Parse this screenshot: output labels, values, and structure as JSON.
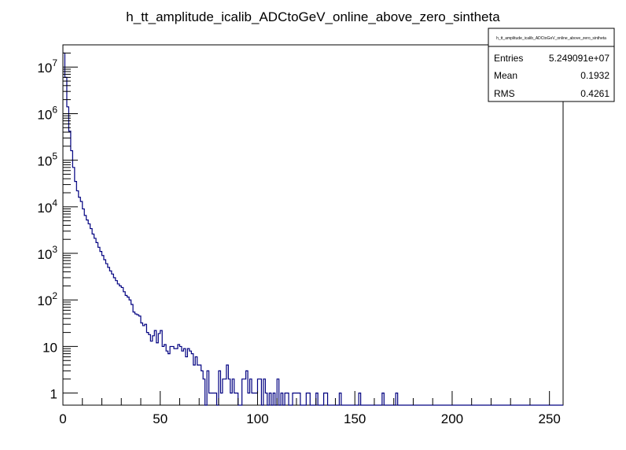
{
  "chart_data": {
    "type": "histogram",
    "title": "h_tt_amplitude_icalib_ADCtoGeV_online_above_zero_sintheta",
    "xlabel": "",
    "ylabel": "",
    "xlim": [
      0,
      257
    ],
    "ylim": [
      0.55,
      30000000
    ],
    "y_scale": "log",
    "grid": false,
    "line_color": "#000080",
    "x_ticks": [
      0,
      50,
      100,
      150,
      200,
      250
    ],
    "x_tick_labels": [
      "0",
      "50",
      "100",
      "150",
      "200",
      "250"
    ],
    "y_ticks": [
      {
        "value": 1,
        "base": "1",
        "exp": ""
      },
      {
        "value": 10,
        "base": "10",
        "exp": ""
      },
      {
        "value": 100,
        "base": "10",
        "exp": "2"
      },
      {
        "value": 1000,
        "base": "10",
        "exp": "3"
      },
      {
        "value": 10000,
        "base": "10",
        "exp": "4"
      },
      {
        "value": 100000,
        "base": "10",
        "exp": "5"
      },
      {
        "value": 1000000,
        "base": "10",
        "exp": "6"
      },
      {
        "value": 10000000,
        "base": "10",
        "exp": "7"
      }
    ],
    "bin_width": 1,
    "bin_start": 0,
    "counts": [
      20000000,
      6000000,
      1400000,
      420000,
      160000,
      70000,
      35000,
      22000,
      16000,
      13000,
      9000,
      6500,
      5200,
      4300,
      3400,
      2600,
      2100,
      1700,
      1350,
      1100,
      900,
      730,
      600,
      500,
      420,
      360,
      300,
      260,
      220,
      200,
      185,
      150,
      125,
      115,
      100,
      80,
      55,
      50,
      48,
      45,
      32,
      28,
      30,
      20,
      18,
      13,
      17,
      22,
      12,
      19,
      22,
      10,
      11,
      8,
      7,
      10,
      10,
      9,
      9,
      11,
      10,
      8,
      9,
      6,
      9,
      8,
      7,
      4,
      6,
      4,
      4,
      3,
      2,
      0,
      3,
      1,
      1,
      1,
      1,
      0,
      3,
      1,
      2,
      2,
      4,
      2,
      1,
      2,
      1,
      1,
      0,
      0,
      2,
      2,
      3,
      1,
      2,
      1,
      1,
      1,
      2,
      2,
      0,
      2,
      1,
      0,
      1,
      0,
      1,
      0,
      2,
      0,
      1,
      0,
      1,
      1,
      0,
      0,
      1,
      1,
      1,
      1,
      0,
      0,
      0,
      1,
      1,
      0,
      0,
      0,
      1,
      0,
      0,
      0,
      1,
      1,
      0,
      0,
      0,
      0,
      0,
      0,
      1,
      0,
      0,
      0,
      0,
      0,
      0,
      0,
      0,
      0,
      1,
      0,
      0,
      0,
      0,
      0,
      0,
      0,
      0,
      0,
      0,
      0,
      1,
      0,
      0,
      0,
      0,
      0,
      0,
      1,
      0,
      0,
      0,
      0,
      0,
      0,
      0,
      0,
      0,
      0,
      0,
      0,
      0,
      0,
      0,
      0,
      0,
      0,
      0,
      0,
      0,
      0,
      0,
      0,
      0,
      0,
      0,
      0,
      0,
      0,
      0,
      0,
      0,
      0,
      0,
      0,
      0,
      0,
      0,
      0,
      0,
      0,
      0,
      0,
      0,
      0,
      0,
      0,
      0,
      0,
      0,
      0,
      0,
      0,
      0,
      0,
      0,
      0,
      0,
      0,
      0,
      0,
      0,
      0,
      0,
      0,
      0,
      0,
      0,
      0,
      0,
      0,
      0,
      0,
      0,
      0,
      0,
      0,
      0,
      0,
      0,
      0,
      0,
      0,
      0
    ],
    "stats_box": {
      "title": "h_tt_amplitude_icalib_ADCtoGeV_online_above_zero_sintheta",
      "rows": [
        {
          "label": "Entries",
          "value": "5.249091e+07"
        },
        {
          "label": "Mean",
          "value": "0.1932"
        },
        {
          "label": "RMS",
          "value": "0.4261"
        }
      ]
    }
  }
}
